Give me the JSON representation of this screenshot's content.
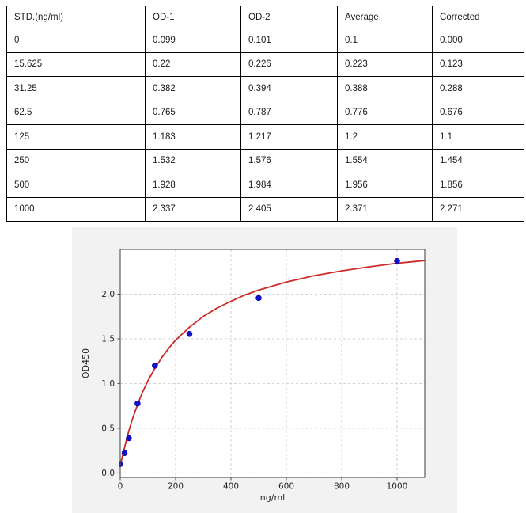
{
  "table": {
    "headers": [
      "STD.(ng/ml)",
      "OD-1",
      "OD-2",
      "Average",
      "Corrected"
    ],
    "rows": [
      [
        "0",
        "0.099",
        "0.101",
        "0.1",
        "0.000"
      ],
      [
        "15.625",
        "0.22",
        "0.226",
        "0.223",
        "0.123"
      ],
      [
        "31.25",
        "0.382",
        "0.394",
        "0.388",
        "0.288"
      ],
      [
        "62.5",
        "0.765",
        "0.787",
        "0.776",
        "0.676"
      ],
      [
        "125",
        "1.183",
        "1.217",
        "1.2",
        "1.1"
      ],
      [
        "250",
        "1.532",
        "1.576",
        "1.554",
        "1.454"
      ],
      [
        "500",
        "1.928",
        "1.984",
        "1.956",
        "1.856"
      ],
      [
        "1000",
        "2.337",
        "2.405",
        "2.371",
        "2.271"
      ]
    ]
  },
  "chart_data": {
    "type": "scatter",
    "title": "",
    "xlabel": "ng/ml",
    "ylabel": "OD450",
    "xlim": [
      0,
      1100
    ],
    "ylim": [
      -0.05,
      2.5
    ],
    "xticks": [
      0,
      200,
      400,
      600,
      800,
      1000
    ],
    "xtick_labels": [
      "0",
      "200",
      "400",
      "600",
      "800",
      "1000"
    ],
    "yticks": [
      0,
      0.5,
      1.0,
      1.5,
      2.0
    ],
    "ytick_labels": [
      "0.0",
      "0.5",
      "1.0",
      "1.5",
      "2.0"
    ],
    "grid": true,
    "grid_style": "dashed",
    "legend": "none",
    "colors": {
      "figure_bg": "#f2f2f2",
      "plot_bg": "#ffffff",
      "grid": "#cccccc",
      "spine": "#4d4d4d",
      "tick_text": "#262626",
      "point": "#1212cd",
      "point_edge": "#0000a6",
      "curve": "#cc2b2b"
    },
    "series": [
      {
        "name": "standard-points",
        "type": "scatter",
        "points": [
          [
            0,
            0.1
          ],
          [
            15.625,
            0.223
          ],
          [
            31.25,
            0.388
          ],
          [
            62.5,
            0.776
          ],
          [
            125,
            1.2
          ],
          [
            250,
            1.554
          ],
          [
            500,
            1.956
          ],
          [
            1000,
            2.371
          ]
        ]
      },
      {
        "name": "fitted-curve",
        "type": "line",
        "points": [
          [
            0,
            0.085
          ],
          [
            2.5,
            0.118
          ],
          [
            5,
            0.15
          ],
          [
            7.5,
            0.183
          ],
          [
            10,
            0.215
          ],
          [
            12.5,
            0.25
          ],
          [
            15.625,
            0.285
          ],
          [
            20,
            0.34
          ],
          [
            25,
            0.4
          ],
          [
            31.25,
            0.47
          ],
          [
            40,
            0.565
          ],
          [
            50,
            0.655
          ],
          [
            62.5,
            0.765
          ],
          [
            80,
            0.9
          ],
          [
            100,
            1.03
          ],
          [
            125,
            1.17
          ],
          [
            150,
            1.29
          ],
          [
            175,
            1.395
          ],
          [
            200,
            1.485
          ],
          [
            250,
            1.63
          ],
          [
            300,
            1.75
          ],
          [
            350,
            1.845
          ],
          [
            400,
            1.92
          ],
          [
            450,
            1.99
          ],
          [
            500,
            2.045
          ],
          [
            600,
            2.135
          ],
          [
            700,
            2.205
          ],
          [
            800,
            2.26
          ],
          [
            900,
            2.305
          ],
          [
            1000,
            2.345
          ],
          [
            1050,
            2.36
          ],
          [
            1100,
            2.375
          ]
        ]
      }
    ]
  }
}
